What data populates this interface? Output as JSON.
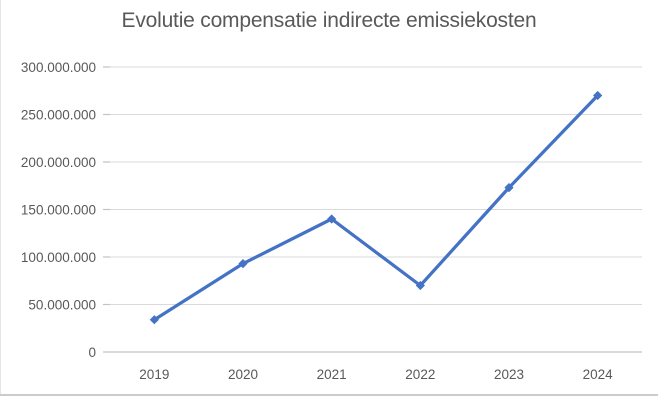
{
  "chart_data": {
    "type": "line",
    "title": "Evolutie compensatie indirecte emissiekosten",
    "categories": [
      "2019",
      "2020",
      "2021",
      "2022",
      "2023",
      "2024"
    ],
    "values": [
      34000000,
      93000000,
      140000000,
      70000000,
      173000000,
      270000000
    ],
    "xlabel": "",
    "ylabel": "",
    "ylim": [
      0,
      300000000
    ],
    "ytick_step": 50000000,
    "ytick_labels": [
      "0",
      "50.000.000",
      "100.000.000",
      "150.000.000",
      "200.000.000",
      "250.000.000",
      "300.000.000"
    ],
    "grid": true,
    "legend": false,
    "marker": "diamond",
    "colors": {
      "line": "#4472C4",
      "gridline": "#D9D9D9",
      "axis": "#C3C3C3",
      "text": "#595959",
      "frame_border": "#CBCBCB"
    }
  }
}
